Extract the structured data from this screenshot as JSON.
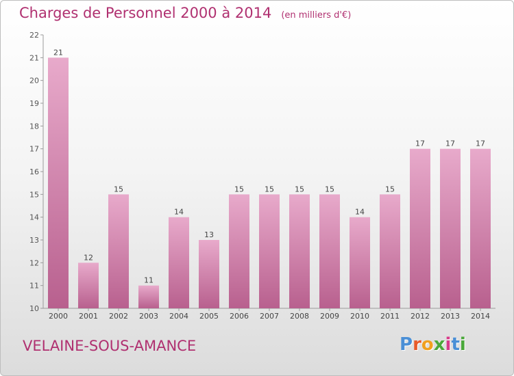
{
  "header": {
    "title": "Charges de Personnel 2000 à 2014",
    "unit": "(en milliers d'€)"
  },
  "footer": {
    "place": "VELAINE-SOUS-AMANCE",
    "logo": "Proxiti"
  },
  "colors": {
    "accent": "#b03070",
    "bar_light": "#e8aacb",
    "bar_dark": "#b8608e",
    "logo_letters": [
      "#4a8fd6",
      "#e85a2a",
      "#f0a020",
      "#4aa83a",
      "#d83a8a",
      "#4a8fd6",
      "#4aa83a"
    ]
  },
  "chart_data": {
    "type": "bar",
    "categories": [
      "2000",
      "2001",
      "2002",
      "2003",
      "2004",
      "2005",
      "2006",
      "2007",
      "2008",
      "2009",
      "2010",
      "2011",
      "2012",
      "2013",
      "2014"
    ],
    "values": [
      21,
      12,
      15,
      11,
      14,
      13,
      15,
      15,
      15,
      15,
      14,
      15,
      17,
      17,
      17
    ],
    "data_labels": [
      "21",
      "12",
      "15",
      "11",
      "14",
      "13",
      "15",
      "15",
      "15",
      "15",
      "14",
      "15",
      "17",
      "17",
      "17"
    ],
    "y_ticks": [
      "10",
      "11",
      "12",
      "13",
      "14",
      "15",
      "16",
      "17",
      "18",
      "19",
      "20",
      "21",
      "22"
    ],
    "ylim": [
      10,
      22
    ],
    "grid": false,
    "title": "Charges de Personnel 2000 à 2014",
    "xlabel": "",
    "ylabel": ""
  }
}
